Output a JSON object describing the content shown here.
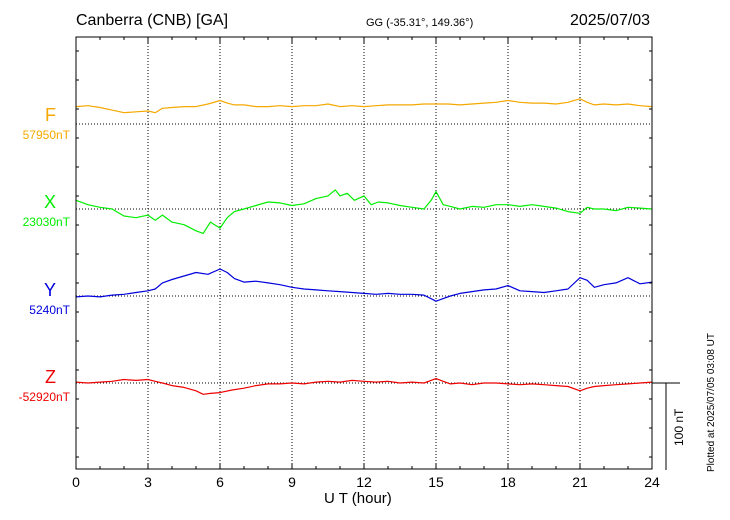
{
  "header": {
    "station": "Canberra (CNB)  [GA]",
    "coords": "GG (-35.31°, 149.36°)",
    "date": "2025/07/03"
  },
  "footer": {
    "plotted": "Plotted at 2025/07/05 03:08 UT"
  },
  "chart_data": {
    "type": "line",
    "xlabel": "U T (hour)",
    "xlim": [
      0,
      24
    ],
    "xticks": [
      "0",
      "3",
      "6",
      "9",
      "12",
      "15",
      "18",
      "21",
      "24"
    ],
    "grid": true,
    "scale_bar": "100 nT",
    "scale_bar_nT": 100,
    "series": [
      {
        "name": "F",
        "baseline_label": "57950nT",
        "color": "#f5a800",
        "baseline_nT": 57950,
        "points": [
          [
            0,
            20
          ],
          [
            0.5,
            21
          ],
          [
            1,
            19
          ],
          [
            1.5,
            16
          ],
          [
            2,
            13
          ],
          [
            2.5,
            14
          ],
          [
            3,
            15
          ],
          [
            3.3,
            13
          ],
          [
            3.6,
            18
          ],
          [
            4,
            19
          ],
          [
            4.5,
            20
          ],
          [
            5,
            20
          ],
          [
            5.5,
            23
          ],
          [
            6,
            27
          ],
          [
            6.3,
            24
          ],
          [
            6.6,
            22
          ],
          [
            7,
            22
          ],
          [
            7.5,
            20
          ],
          [
            8,
            20
          ],
          [
            8.5,
            21
          ],
          [
            9,
            20
          ],
          [
            9.5,
            21
          ],
          [
            10,
            21
          ],
          [
            10.5,
            23
          ],
          [
            11,
            20
          ],
          [
            11.5,
            21
          ],
          [
            12,
            20
          ],
          [
            12.5,
            21
          ],
          [
            13,
            22
          ],
          [
            13.5,
            22
          ],
          [
            14,
            22
          ],
          [
            14.5,
            23
          ],
          [
            15,
            23
          ],
          [
            15.5,
            23
          ],
          [
            16,
            22
          ],
          [
            16.5,
            23
          ],
          [
            17,
            24
          ],
          [
            17.5,
            25
          ],
          [
            18,
            27
          ],
          [
            18.5,
            25
          ],
          [
            19,
            24
          ],
          [
            19.5,
            24
          ],
          [
            20,
            23
          ],
          [
            20.5,
            25
          ],
          [
            21,
            29
          ],
          [
            21.3,
            25
          ],
          [
            21.6,
            22
          ],
          [
            22,
            23
          ],
          [
            22.5,
            22
          ],
          [
            23,
            23
          ],
          [
            23.5,
            21
          ],
          [
            24,
            20
          ]
        ]
      },
      {
        "name": "X",
        "baseline_label": "23030nT",
        "color": "#00ee00",
        "baseline_nT": 23030,
        "points": [
          [
            0,
            10
          ],
          [
            0.5,
            5
          ],
          [
            1,
            2
          ],
          [
            1.5,
            0
          ],
          [
            2,
            -8
          ],
          [
            2.5,
            -10
          ],
          [
            3,
            -7
          ],
          [
            3.3,
            -13
          ],
          [
            3.6,
            -7
          ],
          [
            4,
            -15
          ],
          [
            4.5,
            -18
          ],
          [
            5,
            -25
          ],
          [
            5.3,
            -28
          ],
          [
            5.6,
            -15
          ],
          [
            6,
            -22
          ],
          [
            6.3,
            -10
          ],
          [
            6.6,
            -3
          ],
          [
            7,
            0
          ],
          [
            7.5,
            4
          ],
          [
            8,
            8
          ],
          [
            8.5,
            7
          ],
          [
            9,
            4
          ],
          [
            9.5,
            6
          ],
          [
            10,
            12
          ],
          [
            10.5,
            15
          ],
          [
            10.8,
            22
          ],
          [
            11,
            15
          ],
          [
            11.3,
            18
          ],
          [
            11.6,
            10
          ],
          [
            12,
            15
          ],
          [
            12.3,
            5
          ],
          [
            12.6,
            8
          ],
          [
            13,
            7
          ],
          [
            13.5,
            4
          ],
          [
            14,
            2
          ],
          [
            14.5,
            0
          ],
          [
            14.8,
            10
          ],
          [
            15,
            20
          ],
          [
            15.3,
            5
          ],
          [
            15.6,
            3
          ],
          [
            16,
            0
          ],
          [
            16.5,
            3
          ],
          [
            17,
            2
          ],
          [
            17.5,
            5
          ],
          [
            18,
            5
          ],
          [
            18.5,
            3
          ],
          [
            19,
            5
          ],
          [
            19.5,
            3
          ],
          [
            20,
            1
          ],
          [
            20.5,
            -3
          ],
          [
            21,
            -5
          ],
          [
            21.3,
            2
          ],
          [
            21.6,
            0
          ],
          [
            22,
            0
          ],
          [
            22.5,
            -2
          ],
          [
            23,
            2
          ],
          [
            23.5,
            1
          ],
          [
            24,
            0
          ]
        ]
      },
      {
        "name": "Y",
        "baseline_label": "5240nT",
        "color": "#0000dd",
        "baseline_nT": 5240,
        "points": [
          [
            0,
            -1
          ],
          [
            0.5,
            0
          ],
          [
            1,
            -1
          ],
          [
            1.5,
            1
          ],
          [
            2,
            2
          ],
          [
            2.5,
            4
          ],
          [
            3,
            6
          ],
          [
            3.3,
            8
          ],
          [
            3.6,
            15
          ],
          [
            4,
            19
          ],
          [
            4.5,
            23
          ],
          [
            5,
            27
          ],
          [
            5.5,
            25
          ],
          [
            6,
            31
          ],
          [
            6.3,
            27
          ],
          [
            6.6,
            20
          ],
          [
            7,
            16
          ],
          [
            7.5,
            17
          ],
          [
            8,
            15
          ],
          [
            8.5,
            13
          ],
          [
            9,
            10
          ],
          [
            9.5,
            8
          ],
          [
            10,
            7
          ],
          [
            10.5,
            6
          ],
          [
            11,
            5
          ],
          [
            11.5,
            4
          ],
          [
            12,
            3
          ],
          [
            12.5,
            2
          ],
          [
            13,
            3
          ],
          [
            13.5,
            2
          ],
          [
            14,
            2
          ],
          [
            14.5,
            1
          ],
          [
            15,
            -6
          ],
          [
            15.3,
            -3
          ],
          [
            15.6,
            0
          ],
          [
            16,
            3
          ],
          [
            16.5,
            5
          ],
          [
            17,
            7
          ],
          [
            17.5,
            8
          ],
          [
            18,
            12
          ],
          [
            18.5,
            6
          ],
          [
            19,
            5
          ],
          [
            19.5,
            4
          ],
          [
            20,
            6
          ],
          [
            20.5,
            8
          ],
          [
            21,
            21
          ],
          [
            21.3,
            18
          ],
          [
            21.6,
            10
          ],
          [
            22,
            13
          ],
          [
            22.5,
            15
          ],
          [
            23,
            21
          ],
          [
            23.5,
            14
          ],
          [
            24,
            16
          ]
        ]
      },
      {
        "name": "Z",
        "baseline_label": "-52920nT",
        "color": "#ee0000",
        "baseline_nT": -52920,
        "points": [
          [
            0,
            1
          ],
          [
            0.5,
            0
          ],
          [
            1,
            1
          ],
          [
            1.5,
            2
          ],
          [
            2,
            4
          ],
          [
            2.5,
            3
          ],
          [
            3,
            4
          ],
          [
            3.3,
            2
          ],
          [
            3.6,
            0
          ],
          [
            4,
            -3
          ],
          [
            4.5,
            -5
          ],
          [
            5,
            -9
          ],
          [
            5.3,
            -13
          ],
          [
            5.6,
            -12
          ],
          [
            6,
            -11
          ],
          [
            6.5,
            -8
          ],
          [
            7,
            -6
          ],
          [
            7.5,
            -3
          ],
          [
            8,
            -1
          ],
          [
            8.5,
            -1
          ],
          [
            9,
            0
          ],
          [
            9.5,
            -1
          ],
          [
            10,
            1
          ],
          [
            10.5,
            2
          ],
          [
            11,
            1
          ],
          [
            11.5,
            3
          ],
          [
            12,
            2
          ],
          [
            12.5,
            1
          ],
          [
            13,
            2
          ],
          [
            13.5,
            0
          ],
          [
            14,
            1
          ],
          [
            14.5,
            0
          ],
          [
            15,
            5
          ],
          [
            15.3,
            2
          ],
          [
            15.6,
            -1
          ],
          [
            16,
            0
          ],
          [
            16.5,
            -2
          ],
          [
            17,
            0
          ],
          [
            17.5,
            0
          ],
          [
            18,
            -1
          ],
          [
            18.5,
            -2
          ],
          [
            19,
            -1
          ],
          [
            19.5,
            -2
          ],
          [
            20,
            -3
          ],
          [
            20.5,
            -4
          ],
          [
            21,
            -9
          ],
          [
            21.3,
            -6
          ],
          [
            21.6,
            -4
          ],
          [
            22,
            -3
          ],
          [
            22.5,
            -2
          ],
          [
            23,
            -1
          ],
          [
            23.5,
            0
          ],
          [
            24,
            1
          ]
        ]
      }
    ]
  }
}
